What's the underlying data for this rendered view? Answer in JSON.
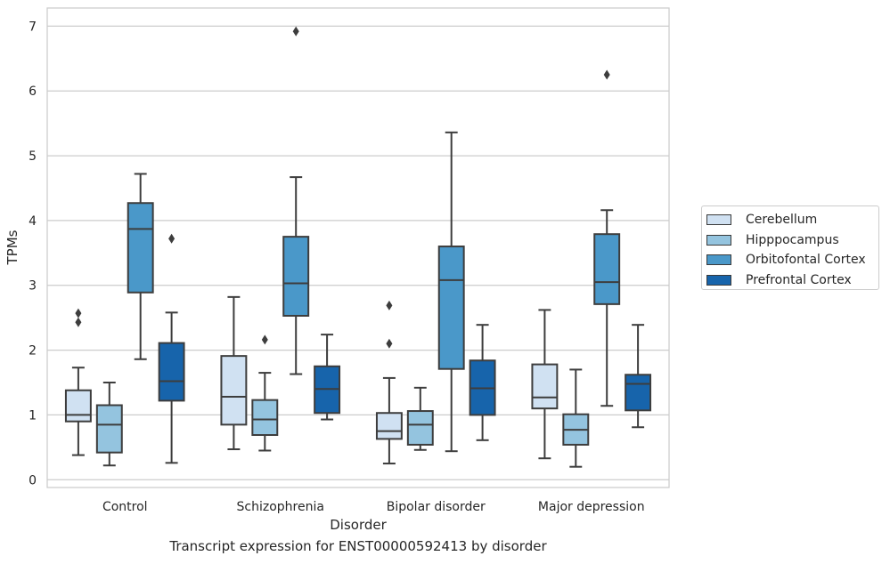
{
  "chart_data": {
    "type": "boxplot",
    "title": "",
    "caption": "Transcript expression for ENST00000592413 by disorder",
    "xlabel": "Disorder",
    "ylabel": "TPMs",
    "ylim": [
      -0.12,
      7.28
    ],
    "yticks": [
      0,
      1,
      2,
      3,
      4,
      5,
      6,
      7
    ],
    "grid": "horizontal",
    "legend_position": "right",
    "categories": [
      "Control",
      "Schizophrenia",
      "Bipolar disorder",
      "Major depression"
    ],
    "series": [
      {
        "name": "Cerebellum",
        "color": "#d0e1f2",
        "boxes": [
          {
            "whisker_low": 0.38,
            "q1": 0.9,
            "median": 1.0,
            "q3": 1.38,
            "whisker_high": 1.73,
            "outliers": [
              2.43,
              2.57
            ]
          },
          {
            "whisker_low": 0.47,
            "q1": 0.85,
            "median": 1.28,
            "q3": 1.91,
            "whisker_high": 2.82,
            "outliers": []
          },
          {
            "whisker_low": 0.25,
            "q1": 0.63,
            "median": 0.75,
            "q3": 1.03,
            "whisker_high": 1.57,
            "outliers": [
              2.1,
              2.69
            ]
          },
          {
            "whisker_low": 0.33,
            "q1": 1.1,
            "median": 1.27,
            "q3": 1.78,
            "whisker_high": 2.62,
            "outliers": []
          }
        ]
      },
      {
        "name": "Hipppocampus",
        "color": "#94c4df",
        "boxes": [
          {
            "whisker_low": 0.22,
            "q1": 0.42,
            "median": 0.85,
            "q3": 1.15,
            "whisker_high": 1.5,
            "outliers": []
          },
          {
            "whisker_low": 0.45,
            "q1": 0.69,
            "median": 0.93,
            "q3": 1.23,
            "whisker_high": 1.65,
            "outliers": [
              2.16
            ]
          },
          {
            "whisker_low": 0.46,
            "q1": 0.54,
            "median": 0.85,
            "q3": 1.06,
            "whisker_high": 1.42,
            "outliers": []
          },
          {
            "whisker_low": 0.2,
            "q1": 0.54,
            "median": 0.77,
            "q3": 1.01,
            "whisker_high": 1.7,
            "outliers": []
          }
        ]
      },
      {
        "name": "Orbitofontal Cortex",
        "color": "#4a98c9",
        "boxes": [
          {
            "whisker_low": 1.86,
            "q1": 2.89,
            "median": 3.87,
            "q3": 4.27,
            "whisker_high": 4.72,
            "outliers": []
          },
          {
            "whisker_low": 1.63,
            "q1": 2.53,
            "median": 3.03,
            "q3": 3.75,
            "whisker_high": 4.67,
            "outliers": [
              6.92
            ]
          },
          {
            "whisker_low": 0.44,
            "q1": 1.71,
            "median": 3.08,
            "q3": 3.6,
            "whisker_high": 5.36,
            "outliers": []
          },
          {
            "whisker_low": 1.14,
            "q1": 2.71,
            "median": 3.05,
            "q3": 3.79,
            "whisker_high": 4.16,
            "outliers": [
              6.25
            ]
          }
        ]
      },
      {
        "name": "Prefrontal Cortex",
        "color": "#1764ab",
        "boxes": [
          {
            "whisker_low": 0.26,
            "q1": 1.22,
            "median": 1.52,
            "q3": 2.11,
            "whisker_high": 2.58,
            "outliers": [
              3.72
            ]
          },
          {
            "whisker_low": 0.93,
            "q1": 1.03,
            "median": 1.4,
            "q3": 1.75,
            "whisker_high": 2.24,
            "outliers": []
          },
          {
            "whisker_low": 0.61,
            "q1": 1.0,
            "median": 1.41,
            "q3": 1.84,
            "whisker_high": 2.39,
            "outliers": []
          },
          {
            "whisker_low": 0.81,
            "q1": 1.07,
            "median": 1.48,
            "q3": 1.62,
            "whisker_high": 2.39,
            "outliers": []
          }
        ]
      }
    ]
  }
}
